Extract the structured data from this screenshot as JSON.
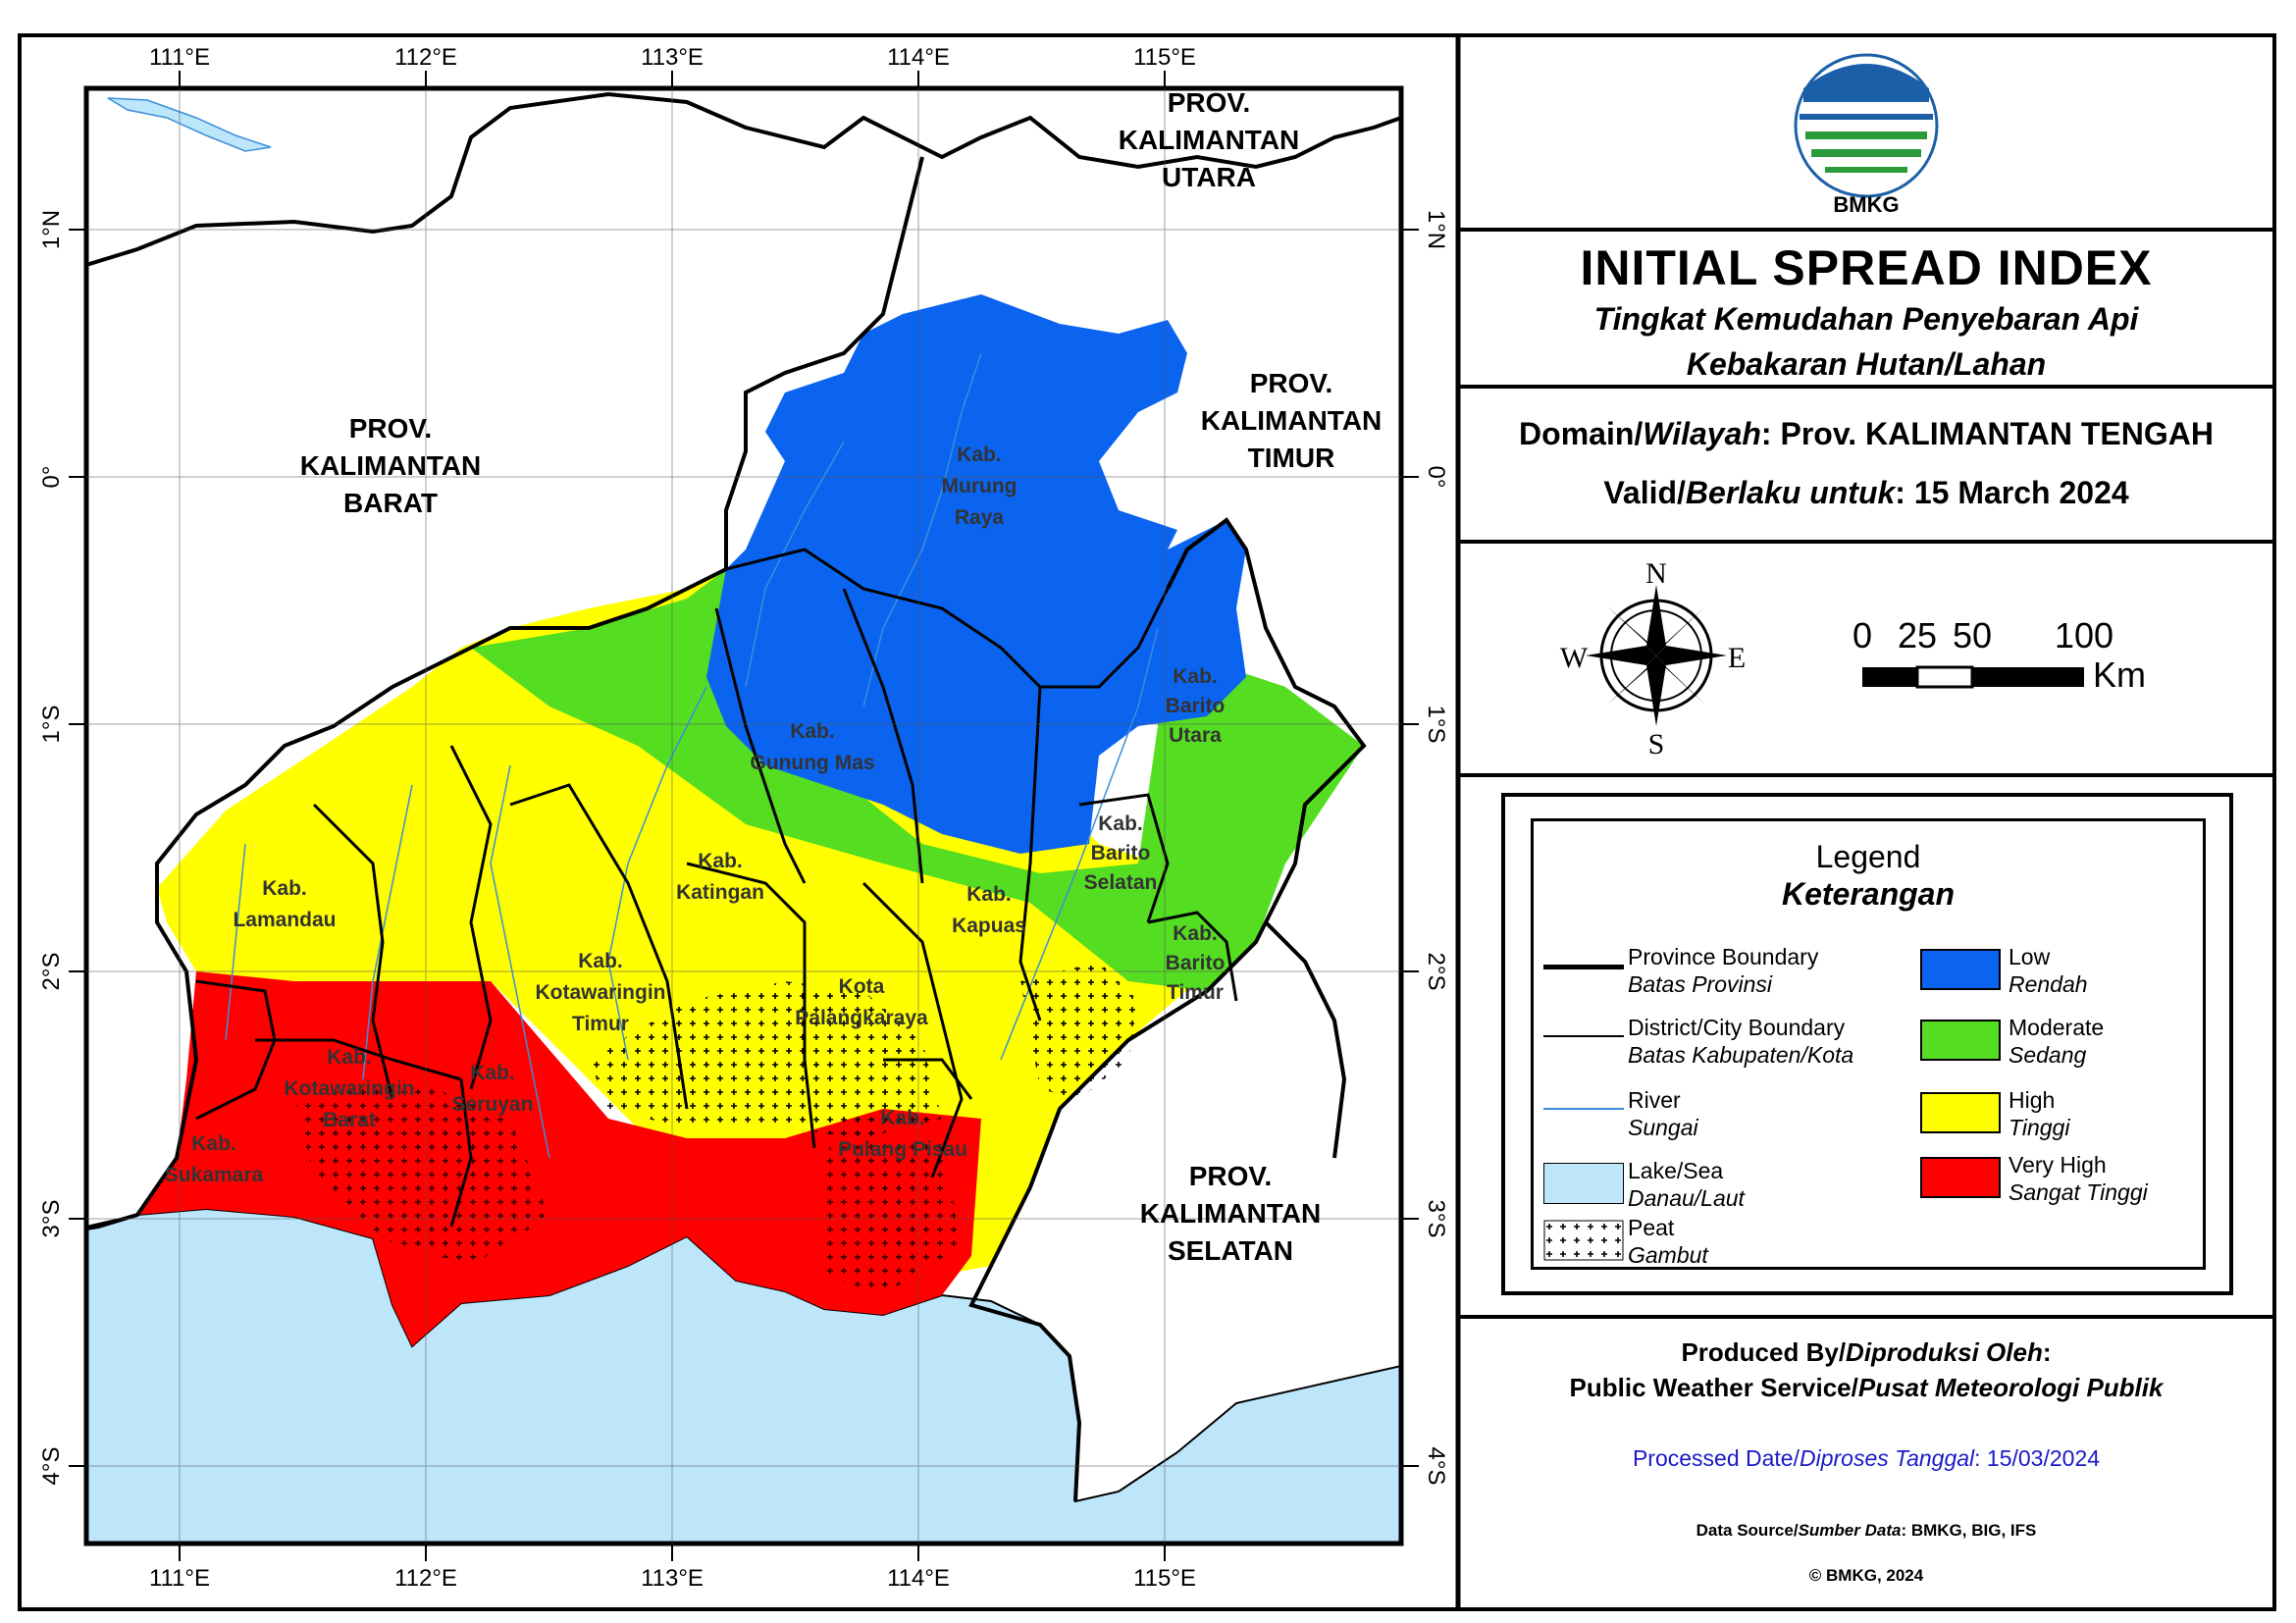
{
  "map": {
    "longitude_ticks": [
      "111°E",
      "112°E",
      "113°E",
      "114°E",
      "115°E"
    ],
    "latitude_ticks": [
      "1°N",
      "0°",
      "1°S",
      "2°S",
      "3°S",
      "4°S"
    ],
    "neighbor_labels": {
      "barat": [
        "PROV.",
        "KALIMANTAN",
        "BARAT"
      ],
      "utara": [
        "PROV.",
        "KALIMANTAN",
        "UTARA"
      ],
      "timur": [
        "PROV.",
        "KALIMANTAN",
        "TIMUR"
      ],
      "selatan": [
        "PROV.",
        "KALIMANTAN",
        "SELATAN"
      ]
    },
    "district_labels": [
      [
        "Kab.",
        "Murung",
        "Raya"
      ],
      [
        "Kab.",
        "Gunung Mas"
      ],
      [
        "Kab.",
        "Barito",
        "Utara"
      ],
      [
        "Kab.",
        "Barito",
        "Selatan"
      ],
      [
        "Kab.",
        "Barito",
        "Timur"
      ],
      [
        "Kab.",
        "Kapuas"
      ],
      [
        "Kab.",
        "Katingan"
      ],
      [
        "Kota",
        "Palangkaraya"
      ],
      [
        "Kab.",
        "Pulang Pisau"
      ],
      [
        "Kab.",
        "Kotawaringin",
        "Timur"
      ],
      [
        "Kab.",
        "Lamandau"
      ],
      [
        "Kab.",
        "Kotawaringin",
        "Barat"
      ],
      [
        "Kab.",
        "Seruyan"
      ],
      [
        "Kab.",
        "Sukamara"
      ]
    ],
    "colors": {
      "low": "#0a64f0",
      "moderate": "#55dd22",
      "high": "#ffff00",
      "very_high": "#ff0000",
      "sea": "#bde6fb",
      "river": "#3a8fd8"
    }
  },
  "logo": {
    "text": "BMKG"
  },
  "title": {
    "main": "INITIAL SPREAD INDEX",
    "sub1": "Tingkat Kemudahan Penyebaran Api",
    "sub2": "Kebakaran Hutan/Lahan"
  },
  "domain": {
    "label_en": "Domain/",
    "label_id": "Wilayah",
    "value": ": Prov. KALIMANTAN TENGAH",
    "valid_en": "Valid/",
    "valid_id": "Berlaku untuk",
    "valid_value": ": 15 March 2024"
  },
  "compass": {
    "n": "N",
    "s": "S",
    "e": "E",
    "w": "W"
  },
  "scale": {
    "labels": [
      "0",
      "25",
      "50",
      "100"
    ],
    "unit": "Km"
  },
  "legend": {
    "title": "Legend",
    "subtitle": "Keterangan",
    "lines": [
      {
        "label": "Province Boundary",
        "label_id": "Batas Provinsi"
      },
      {
        "label": "District/City Boundary",
        "label_id": "Batas Kabupaten/Kota"
      },
      {
        "label": "River",
        "label_id": "Sungai"
      },
      {
        "label": "Lake/Sea",
        "label_id": "Danau/Laut"
      },
      {
        "label": "Peat",
        "label_id": "Gambut"
      }
    ],
    "classes": [
      {
        "label": "Low",
        "label_id": "Rendah",
        "color": "#0a64f0"
      },
      {
        "label": "Moderate",
        "label_id": "Sedang",
        "color": "#55dd22"
      },
      {
        "label": "High",
        "label_id": "Tinggi",
        "color": "#ffff00"
      },
      {
        "label": "Very High",
        "label_id": "Sangat Tinggi",
        "color": "#ff0000"
      }
    ]
  },
  "footer": {
    "produced_en": "Produced By/",
    "produced_id": "Diproduksi Oleh",
    "produced_colon": ":",
    "service_en": "Public Weather Service/",
    "service_id": "Pusat Meteorologi Publik",
    "processed_en": "Processed Date/",
    "processed_id": "Diproses Tanggal",
    "processed_value": ": 15/03/2024",
    "source_en": "Data Source/",
    "source_id": "Sumber Data",
    "source_value": ": BMKG, BIG, IFS",
    "copyright": "© BMKG, 2024"
  }
}
